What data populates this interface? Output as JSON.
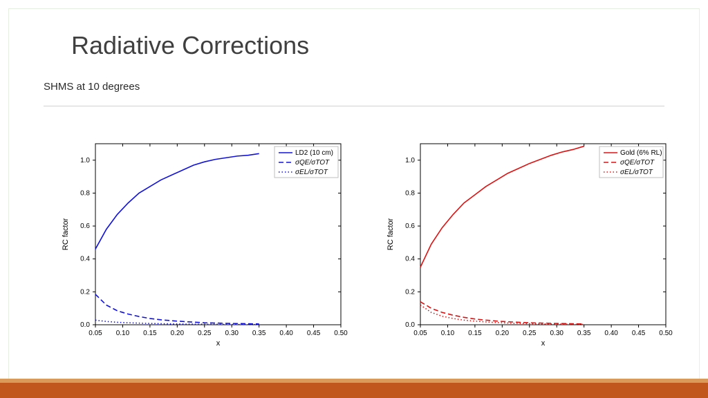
{
  "slide": {
    "title": "Radiative Corrections",
    "subtitle": "SHMS at 10 degrees",
    "title_fontsize": 36,
    "title_color": "#404040",
    "subtitle_fontsize": 15,
    "subtitle_color": "#2a2a2a",
    "border_color": "#e5f0e0",
    "footer_top_color": "#d99a5a",
    "footer_bottom_color": "#c1571c"
  },
  "charts": {
    "common": {
      "xlabel": "x",
      "ylabel": "RC factor",
      "xlim": [
        0.05,
        0.5
      ],
      "ylim": [
        0.0,
        1.1
      ],
      "xticks": [
        0.05,
        0.1,
        0.15,
        0.2,
        0.25,
        0.3,
        0.35,
        0.4,
        0.45,
        0.5
      ],
      "yticks": [
        0.0,
        0.2,
        0.4,
        0.6,
        0.8,
        1.0
      ],
      "xtick_labels": [
        "0.05",
        "0.10",
        "0.15",
        "0.20",
        "0.25",
        "0.30",
        "0.35",
        "0.40",
        "0.45",
        "0.50"
      ],
      "ytick_labels": [
        "0.0",
        "0.2",
        "0.4",
        "0.6",
        "0.8",
        "1.0"
      ],
      "axis_color": "#000000",
      "background": "#ffffff",
      "tick_fontsize": 10,
      "label_fontsize": 11,
      "line_width": 1.6
    },
    "left": {
      "legend_title": "LD2 (10 cm)",
      "legend_qe": "σQE/σTOT",
      "legend_el": "σEL/σTOT",
      "color": "#1010e0",
      "series_main": {
        "dash": "solid",
        "x": [
          0.05,
          0.07,
          0.09,
          0.11,
          0.13,
          0.15,
          0.17,
          0.19,
          0.21,
          0.23,
          0.25,
          0.27,
          0.29,
          0.31,
          0.33,
          0.35
        ],
        "y": [
          0.46,
          0.58,
          0.67,
          0.74,
          0.8,
          0.84,
          0.88,
          0.91,
          0.94,
          0.97,
          0.99,
          1.005,
          1.015,
          1.025,
          1.03,
          1.04
        ]
      },
      "series_qe": {
        "dash": "7,4",
        "x": [
          0.05,
          0.07,
          0.09,
          0.11,
          0.13,
          0.15,
          0.17,
          0.2,
          0.25,
          0.3,
          0.35
        ],
        "y": [
          0.185,
          0.12,
          0.085,
          0.065,
          0.05,
          0.038,
          0.03,
          0.022,
          0.012,
          0.008,
          0.005
        ]
      },
      "series_el": {
        "dash": "1.5,3",
        "x": [
          0.05,
          0.07,
          0.09,
          0.11,
          0.13,
          0.15,
          0.18,
          0.22,
          0.26,
          0.3,
          0.35
        ],
        "y": [
          0.028,
          0.02,
          0.015,
          0.012,
          0.01,
          0.008,
          0.006,
          0.004,
          0.003,
          0.002,
          0.001
        ]
      }
    },
    "right": {
      "legend_title": "Gold (6% RL)",
      "legend_qe": "σQE/σTOT",
      "legend_el": "σEL/σTOT",
      "color": "#e01010",
      "series_main": {
        "dash": "solid",
        "x": [
          0.05,
          0.07,
          0.09,
          0.11,
          0.13,
          0.15,
          0.17,
          0.19,
          0.21,
          0.23,
          0.25,
          0.27,
          0.29,
          0.31,
          0.33,
          0.35
        ],
        "y": [
          0.35,
          0.49,
          0.59,
          0.67,
          0.74,
          0.79,
          0.84,
          0.88,
          0.92,
          0.95,
          0.98,
          1.005,
          1.03,
          1.05,
          1.065,
          1.085
        ]
      },
      "series_qe": {
        "dash": "7,4",
        "x": [
          0.05,
          0.07,
          0.09,
          0.11,
          0.13,
          0.15,
          0.17,
          0.2,
          0.25,
          0.3,
          0.35
        ],
        "y": [
          0.14,
          0.1,
          0.075,
          0.058,
          0.045,
          0.035,
          0.028,
          0.02,
          0.012,
          0.008,
          0.005
        ]
      },
      "series_el": {
        "dash": "1.5,3",
        "x": [
          0.05,
          0.07,
          0.09,
          0.11,
          0.13,
          0.15,
          0.18,
          0.22,
          0.26,
          0.3,
          0.35
        ],
        "y": [
          0.12,
          0.075,
          0.052,
          0.038,
          0.028,
          0.022,
          0.015,
          0.009,
          0.006,
          0.004,
          0.002
        ]
      }
    }
  }
}
